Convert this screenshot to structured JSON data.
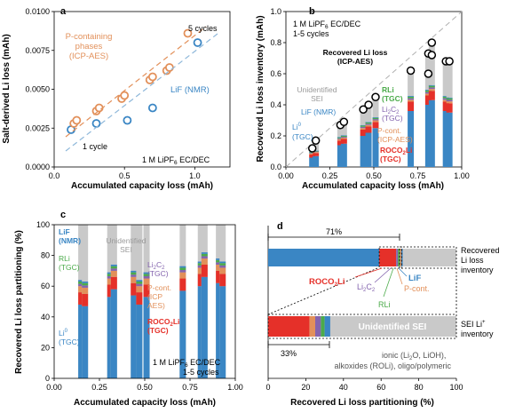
{
  "colors": {
    "blue": "#3a86c4",
    "lightblue": "#8fb8da",
    "orange": "#e2905a",
    "red": "#e53029",
    "green": "#4bab4a",
    "purple": "#8464ae",
    "gray": "#c9c9c9",
    "darkgray": "#7a7a7a"
  },
  "chart_data": [
    {
      "panel": "a",
      "type": "scatter",
      "xlabel": "Accumulated capacity loss (mAh)",
      "ylabel": "Salt-derived Li loss (mAh)",
      "xlim": [
        0,
        1.25
      ],
      "ylim": [
        0,
        0.01
      ],
      "xticks": [
        "0.0",
        "0.5",
        "1.0"
      ],
      "yticks": [
        "0.0000",
        "0.0025",
        "0.0050",
        "0.0075",
        "0.0100"
      ],
      "series": [
        {
          "name": "LiF (NMR)",
          "color": "blue",
          "x": [
            0.12,
            0.3,
            0.52,
            0.7,
            1.02
          ],
          "y": [
            0.0024,
            0.0028,
            0.003,
            0.0038,
            0.008
          ]
        },
        {
          "name": "P-containing phases (ICP-AES)",
          "color": "orange",
          "x": [
            0.14,
            0.16,
            0.3,
            0.32,
            0.48,
            0.5,
            0.68,
            0.7,
            0.8,
            0.82,
            0.95
          ],
          "y": [
            0.0028,
            0.003,
            0.0036,
            0.0038,
            0.0044,
            0.0046,
            0.0056,
            0.0058,
            0.0062,
            0.0064,
            0.0086
          ]
        }
      ],
      "annotations": {
        "cycles5": "5 cycles",
        "cycles1": "1 cycle",
        "electrolyte_pre": "1 M LiPF",
        "electrolyte_sub": "6",
        "electrolyte_post": " EC/DEC",
        "pcont_line1": "P-containing",
        "pcont_line2": "phases",
        "pcont_line3": "(ICP-AES)",
        "lif": "LiF (NMR)"
      }
    },
    {
      "panel": "b",
      "type": "bar",
      "xlabel": "Accumulated capacity loss (mAh)",
      "ylabel": "Recovered Li loss inventory (mAh)",
      "xlim": [
        0,
        1.0
      ],
      "ylim": [
        0,
        1.0
      ],
      "xticks": [
        "0.00",
        "0.25",
        "0.50",
        "0.75",
        "1.00"
      ],
      "yticks": [
        "0.0",
        "0.2",
        "0.4",
        "0.6",
        "0.8",
        "1.0"
      ],
      "bars": [
        {
          "x": 0.15,
          "li0": 0.06,
          "roco2li": 0.02,
          "pcont": 0.006,
          "lic": 0.004,
          "rli": 0.004,
          "lif": 0.003,
          "icp": 0.12
        },
        {
          "x": 0.17,
          "li0": 0.07,
          "roco2li": 0.02,
          "pcont": 0.006,
          "lic": 0.004,
          "rli": 0.004,
          "lif": 0.003,
          "icp": 0.17
        },
        {
          "x": 0.31,
          "li0": 0.14,
          "roco2li": 0.03,
          "pcont": 0.008,
          "lic": 0.006,
          "rli": 0.006,
          "lif": 0.004,
          "icp": 0.27
        },
        {
          "x": 0.33,
          "li0": 0.15,
          "roco2li": 0.03,
          "pcont": 0.008,
          "lic": 0.006,
          "rli": 0.006,
          "lif": 0.004,
          "icp": 0.29
        },
        {
          "x": 0.44,
          "li0": 0.2,
          "roco2li": 0.04,
          "pcont": 0.01,
          "lic": 0.008,
          "rli": 0.008,
          "lif": 0.004,
          "icp": 0.37
        },
        {
          "x": 0.47,
          "li0": 0.22,
          "roco2li": 0.04,
          "pcont": 0.01,
          "lic": 0.008,
          "rli": 0.008,
          "lif": 0.004,
          "icp": 0.4
        },
        {
          "x": 0.51,
          "li0": 0.25,
          "roco2li": 0.04,
          "pcont": 0.01,
          "lic": 0.008,
          "rli": 0.008,
          "lif": 0.004,
          "icp": 0.45
        },
        {
          "x": 0.71,
          "li0": 0.36,
          "roco2li": 0.06,
          "pcont": 0.012,
          "lic": 0.01,
          "rli": 0.01,
          "lif": 0.005,
          "icp": 0.62
        },
        {
          "x": 0.81,
          "li0": 0.4,
          "roco2li": 0.06,
          "pcont": 0.012,
          "lic": 0.01,
          "rli": 0.01,
          "lif": 0.005,
          "icp": 0.73
        },
        {
          "x": 0.83,
          "li0": 0.43,
          "roco2li": 0.06,
          "pcont": 0.012,
          "lic": 0.01,
          "rli": 0.01,
          "lif": 0.005,
          "icp": 0.8
        },
        {
          "x": 0.91,
          "li0": 0.36,
          "roco2li": 0.06,
          "pcont": 0.012,
          "lic": 0.01,
          "rli": 0.01,
          "lif": 0.005,
          "icp": 0.68
        },
        {
          "x": 0.93,
          "li0": 0.35,
          "roco2li": 0.06,
          "pcont": 0.012,
          "lic": 0.01,
          "rli": 0.01,
          "lif": 0.005,
          "icp": 0.68
        }
      ],
      "extra_circles": [
        {
          "x": 0.83,
          "y": 0.72
        },
        {
          "x": 0.81,
          "y": 0.6
        }
      ],
      "labels": {
        "electrolyte_pre": "1 M LiPF",
        "electrolyte_sub": "6",
        "electrolyte_post": " EC/DEC",
        "cycles": "1-5 cycles",
        "recovered_line1": "Recovered Li loss",
        "recovered_line2": "(ICP-AES)",
        "unident_line1": "Unidentified",
        "unident_line2": "SEI",
        "rli_line1": "RLi",
        "rli_line2": "(TGC)",
        "lic_pre": "Li",
        "lic_mid": "2",
        "lic_post": "C",
        "lic_line2_pre": "C",
        "lic_line2_sub": "2",
        "lic_line3": "(TGC)",
        "lif": "LiF (NMR)",
        "li0_line1": "Li",
        "li0_sup": "0",
        "li0_line2": "(TGC)",
        "pcont_line1": "P-cont.",
        "pcont_line2": "(ICP-AES)",
        "roco2li_line1": "ROCO",
        "roco2li_sub": "2",
        "roco2li_tail": "Li",
        "roco2li_line2": "(TGC)"
      }
    },
    {
      "panel": "c",
      "type": "bar",
      "xlabel": "Accumulated capacity loss (mAh)",
      "ylabel": "Recovered Li loss partitioning (%)",
      "xlim": [
        0,
        1.0
      ],
      "ylim": [
        0,
        100
      ],
      "xticks": [
        "0.00",
        "0.25",
        "0.50",
        "0.75",
        "1.00"
      ],
      "yticks": [
        "0",
        "20",
        "40",
        "60",
        "80",
        "100"
      ],
      "bars": [
        {
          "x": 0.15,
          "li0": 48,
          "roco2li": 8,
          "pcont": 4,
          "lic": 1.5,
          "rli": 1.5,
          "lif": 1
        },
        {
          "x": 0.17,
          "li0": 47,
          "roco2li": 8,
          "pcont": 4,
          "lic": 1.5,
          "rli": 1.5,
          "lif": 1
        },
        {
          "x": 0.31,
          "li0": 53,
          "roco2li": 8,
          "pcont": 4,
          "lic": 1.5,
          "rli": 1.5,
          "lif": 1
        },
        {
          "x": 0.33,
          "li0": 58,
          "roco2li": 8,
          "pcont": 4,
          "lic": 1.5,
          "rli": 1.5,
          "lif": 1
        },
        {
          "x": 0.44,
          "li0": 54,
          "roco2li": 8,
          "pcont": 4,
          "lic": 1.5,
          "rli": 1.5,
          "lif": 1
        },
        {
          "x": 0.47,
          "li0": 48,
          "roco2li": 8,
          "pcont": 4,
          "lic": 1.5,
          "rli": 1.5,
          "lif": 1
        },
        {
          "x": 0.51,
          "li0": 53,
          "roco2li": 8,
          "pcont": 4,
          "lic": 1.5,
          "rli": 1.5,
          "lif": 1
        },
        {
          "x": 0.71,
          "li0": 57,
          "roco2li": 8,
          "pcont": 4,
          "lic": 1.5,
          "rli": 1.5,
          "lif": 1
        },
        {
          "x": 0.81,
          "li0": 60,
          "roco2li": 8,
          "pcont": 4,
          "lic": 1.5,
          "rli": 1.5,
          "lif": 1
        },
        {
          "x": 0.83,
          "li0": 66,
          "roco2li": 8,
          "pcont": 4,
          "lic": 1.5,
          "rli": 1.5,
          "lif": 1
        },
        {
          "x": 0.91,
          "li0": 62,
          "roco2li": 8,
          "pcont": 4,
          "lic": 1.5,
          "rli": 1.5,
          "lif": 1
        },
        {
          "x": 0.93,
          "li0": 60,
          "roco2li": 8,
          "pcont": 4,
          "lic": 1.5,
          "rli": 1.5,
          "lif": 1
        }
      ],
      "labels": {
        "lif_line1": "LiF",
        "lif_line2": "(NMR)",
        "rli_line1": "RLi",
        "rli_line2": "(TGC)",
        "li0_line1": "Li",
        "li0_sup": "0",
        "li0_line2": "(TGC)",
        "unident_line1": "Unidentified",
        "unident_line2": "SEI",
        "lic_pre": "Li",
        "lic_sub1": "2",
        "lic_mid": "C",
        "lic_sub2": "2",
        "lic_line2": "(TGC)",
        "pcont_line1": "P-cont.",
        "pcont_line2": "(ICP",
        "pcont_line3": "AES)",
        "roco2li_line1": "ROCO",
        "roco2li_sub": "2",
        "roco2li_tail": "Li",
        "roco2li_line2": "(TGC)",
        "electrolyte_pre": "1 M LiPF",
        "electrolyte_sub": "6",
        "electrolyte_post": " EC/DEC",
        "cycles": "1-5 cycles"
      }
    },
    {
      "panel": "d",
      "type": "bar",
      "xlabel": "Recovered Li loss partitioning (%)",
      "xlim": [
        0,
        100
      ],
      "xticks": [
        "0",
        "20",
        "40",
        "60",
        "80",
        "100"
      ],
      "bars": [
        {
          "name": "Recovered Li loss inventory",
          "segments": [
            {
              "label": "Li0",
              "color": "blue",
              "value": 59
            },
            {
              "label": "ROCO2Li",
              "color": "red",
              "value": 9
            },
            {
              "label": "Li2C2",
              "color": "purple",
              "value": 1
            },
            {
              "label": "RLi",
              "color": "green",
              "value": 1
            },
            {
              "label": "P-cont.",
              "color": "orange",
              "value": 0.7
            },
            {
              "label": "LiF",
              "color": "blue",
              "value": 0.8
            },
            {
              "label": "Unidentified SEI",
              "color": "gray",
              "value": 28.5
            }
          ]
        },
        {
          "name": "SEI Li+ inventory",
          "segments": [
            {
              "label": "ROCO2Li",
              "color": "red",
              "value": 22
            },
            {
              "label": "P-cont.",
              "color": "orange",
              "value": 3
            },
            {
              "label": "Li2C2",
              "color": "purple",
              "value": 3
            },
            {
              "label": "RLi",
              "color": "green",
              "value": 2
            },
            {
              "label": "LiF",
              "color": "blue",
              "value": 3
            },
            {
              "label": "Unidentified SEI",
              "color": "gray",
              "value": 67
            }
          ]
        }
      ],
      "labels": {
        "pct71": "71%",
        "pct33": "33%",
        "recovered_line1": "Recovered",
        "recovered_line2": "Li loss",
        "recovered_line3": "inventory",
        "sei_line1": "SEI Li",
        "sei_sup": "+",
        "sei_line2": "inventory",
        "lif": "LiF",
        "pcont": "P-cont.",
        "roco2li_pre": "ROCO",
        "roco2li_sub": "2",
        "roco2li_tail": "Li",
        "li2c2_pre": "Li",
        "li2c2_sub1": "2",
        "li2c2_mid": "C",
        "li2c2_sub2": "2",
        "rli": "RLi",
        "unident": "Unidentified SEI",
        "note_line1": "ionic (Li",
        "note_sub1": "2",
        "note_line1_tail": "O, LiOH),",
        "note_line2": "alkoxides (ROLi), oligo/polymeric"
      }
    }
  ],
  "panel_letters": {
    "a": "a",
    "b": "b",
    "c": "c",
    "d": "d"
  }
}
